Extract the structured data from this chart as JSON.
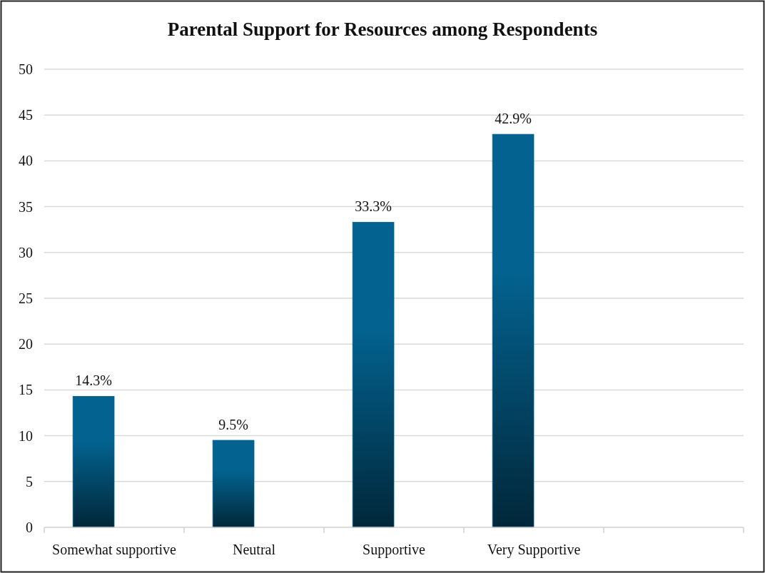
{
  "chart_data": {
    "type": "bar",
    "title": "Parental Support for Resources among Respondents",
    "categories": [
      "Somewhat supportive",
      "Neutral",
      "Supportive",
      "Very Supportive",
      null
    ],
    "values": [
      14.3,
      9.5,
      33.3,
      42.9,
      null
    ],
    "color": "#03628f",
    "value_labels": [
      "14.3%",
      "9.5%",
      "33.3%",
      "42.9%",
      null
    ],
    "ylim": [
      0,
      50
    ],
    "yticks": [
      0,
      5,
      10,
      15,
      20,
      25,
      30,
      35,
      40,
      45,
      50
    ],
    "grid": "y"
  }
}
